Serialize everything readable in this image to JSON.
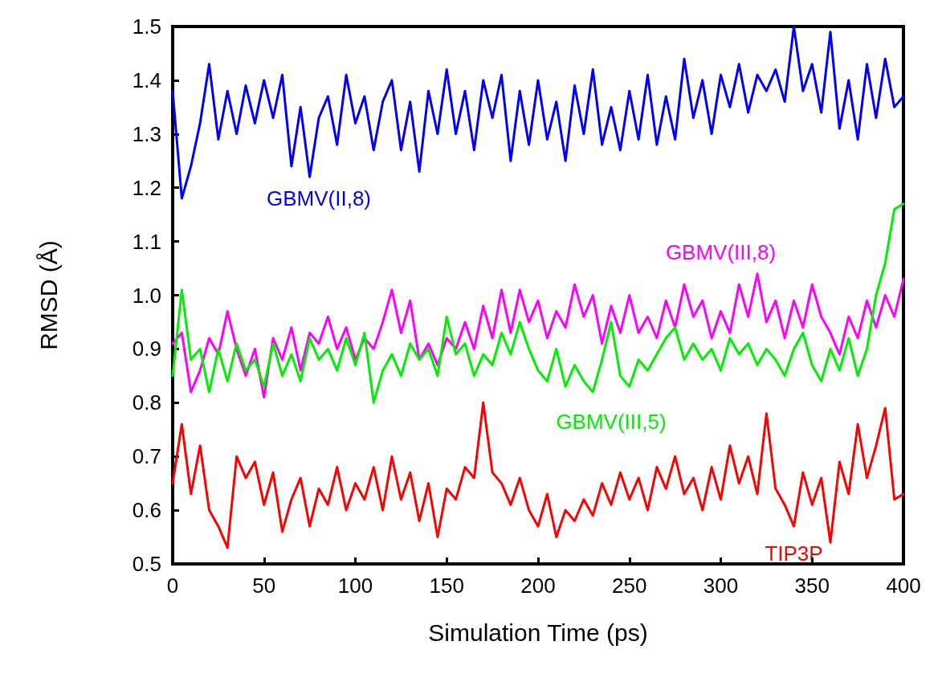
{
  "chart_data": {
    "type": "line",
    "xlabel": "Simulation Time (ps)",
    "ylabel": "RMSD (Å)",
    "x": [
      0,
      5,
      10,
      15,
      20,
      25,
      30,
      35,
      40,
      45,
      50,
      55,
      60,
      65,
      70,
      75,
      80,
      85,
      90,
      95,
      100,
      105,
      110,
      115,
      120,
      125,
      130,
      135,
      140,
      145,
      150,
      155,
      160,
      165,
      170,
      175,
      180,
      185,
      190,
      195,
      200,
      205,
      210,
      215,
      220,
      225,
      230,
      235,
      240,
      245,
      250,
      255,
      260,
      265,
      270,
      275,
      280,
      285,
      290,
      295,
      300,
      305,
      310,
      315,
      320,
      325,
      330,
      335,
      340,
      345,
      350,
      355,
      360,
      365,
      370,
      375,
      380,
      385,
      390,
      395,
      400
    ],
    "xlim": [
      0,
      400
    ],
    "xticks": [
      0,
      50,
      100,
      150,
      200,
      250,
      300,
      350,
      400
    ],
    "ylim": [
      0.5,
      1.5
    ],
    "yticks": [
      {
        "value": 0.5,
        "label": "0.5"
      },
      {
        "value": 0.6,
        "label": "0.6"
      },
      {
        "value": 0.7,
        "label": "0.7"
      },
      {
        "value": 0.8,
        "label": "0.8"
      },
      {
        "value": 0.9,
        "label": "0.9"
      },
      {
        "value": 1,
        "label": "1.0"
      },
      {
        "value": 1.1,
        "label": "1.1"
      },
      {
        "value": 1.2,
        "label": "1.2"
      },
      {
        "value": 1.3,
        "label": "1.3"
      },
      {
        "value": 1.4,
        "label": "1.4"
      },
      {
        "value": 1.5,
        "label": "1.5"
      }
    ],
    "grid": false,
    "legend": false,
    "marker": "none",
    "line_style": "solid",
    "series": [
      {
        "name": "GBMV(II,8)",
        "color": "#0000ff",
        "values": [
          1.38,
          1.18,
          1.24,
          1.32,
          1.43,
          1.29,
          1.38,
          1.3,
          1.39,
          1.32,
          1.4,
          1.33,
          1.41,
          1.24,
          1.35,
          1.22,
          1.33,
          1.37,
          1.28,
          1.41,
          1.32,
          1.37,
          1.27,
          1.36,
          1.4,
          1.27,
          1.36,
          1.23,
          1.38,
          1.3,
          1.42,
          1.3,
          1.38,
          1.27,
          1.4,
          1.33,
          1.41,
          1.25,
          1.38,
          1.28,
          1.4,
          1.29,
          1.36,
          1.25,
          1.39,
          1.3,
          1.42,
          1.28,
          1.35,
          1.27,
          1.38,
          1.29,
          1.41,
          1.28,
          1.37,
          1.29,
          1.44,
          1.33,
          1.4,
          1.3,
          1.41,
          1.35,
          1.43,
          1.34,
          1.41,
          1.38,
          1.42,
          1.36,
          1.5,
          1.38,
          1.43,
          1.34,
          1.49,
          1.31,
          1.4,
          1.29,
          1.43,
          1.33,
          1.44,
          1.35,
          1.37
        ]
      },
      {
        "name": "GBMV(III,8)",
        "color": "#ff00ff",
        "values": [
          0.91,
          0.93,
          0.82,
          0.86,
          0.92,
          0.89,
          0.97,
          0.9,
          0.85,
          0.9,
          0.81,
          0.92,
          0.88,
          0.94,
          0.86,
          0.93,
          0.91,
          0.96,
          0.9,
          0.94,
          0.88,
          0.92,
          0.9,
          0.95,
          1.01,
          0.93,
          0.99,
          0.88,
          0.91,
          0.87,
          0.92,
          0.9,
          0.95,
          0.9,
          0.98,
          0.92,
          1.01,
          0.93,
          1.01,
          0.95,
          0.99,
          0.92,
          0.97,
          0.94,
          1.02,
          0.96,
          1.0,
          0.91,
          0.98,
          0.93,
          1.0,
          0.93,
          0.96,
          0.92,
          0.99,
          0.94,
          1.02,
          0.96,
          0.99,
          0.92,
          0.97,
          0.93,
          1.02,
          0.96,
          1.04,
          0.95,
          0.99,
          0.92,
          0.99,
          0.94,
          1.02,
          0.96,
          0.93,
          0.89,
          0.96,
          0.92,
          0.99,
          0.94,
          1.0,
          0.96,
          1.03
        ]
      },
      {
        "name": "GBMV(III,5)",
        "color": "#00ee00",
        "values": [
          0.85,
          1.01,
          0.88,
          0.9,
          0.82,
          0.9,
          0.84,
          0.91,
          0.86,
          0.88,
          0.83,
          0.91,
          0.85,
          0.89,
          0.84,
          0.92,
          0.88,
          0.9,
          0.86,
          0.92,
          0.87,
          0.93,
          0.8,
          0.86,
          0.89,
          0.85,
          0.91,
          0.88,
          0.9,
          0.85,
          0.96,
          0.89,
          0.91,
          0.85,
          0.89,
          0.87,
          0.93,
          0.89,
          0.95,
          0.9,
          0.86,
          0.84,
          0.9,
          0.83,
          0.87,
          0.84,
          0.82,
          0.88,
          0.95,
          0.85,
          0.83,
          0.88,
          0.86,
          0.89,
          0.92,
          0.94,
          0.88,
          0.91,
          0.88,
          0.9,
          0.86,
          0.92,
          0.89,
          0.91,
          0.87,
          0.9,
          0.88,
          0.85,
          0.9,
          0.93,
          0.87,
          0.84,
          0.9,
          0.86,
          0.92,
          0.85,
          0.9,
          1.0,
          1.06,
          1.16,
          1.17
        ]
      },
      {
        "name": "TIP3P",
        "color": "#ff0000",
        "values": [
          0.65,
          0.76,
          0.63,
          0.72,
          0.6,
          0.57,
          0.53,
          0.7,
          0.66,
          0.69,
          0.61,
          0.67,
          0.56,
          0.62,
          0.66,
          0.57,
          0.64,
          0.61,
          0.68,
          0.6,
          0.65,
          0.62,
          0.68,
          0.6,
          0.7,
          0.62,
          0.67,
          0.58,
          0.65,
          0.55,
          0.64,
          0.62,
          0.68,
          0.66,
          0.8,
          0.67,
          0.65,
          0.61,
          0.66,
          0.6,
          0.57,
          0.63,
          0.55,
          0.6,
          0.58,
          0.62,
          0.59,
          0.65,
          0.61,
          0.67,
          0.62,
          0.66,
          0.6,
          0.68,
          0.64,
          0.7,
          0.63,
          0.66,
          0.6,
          0.68,
          0.62,
          0.72,
          0.65,
          0.7,
          0.63,
          0.78,
          0.64,
          0.61,
          0.57,
          0.67,
          0.61,
          0.66,
          0.54,
          0.69,
          0.63,
          0.76,
          0.66,
          0.72,
          0.79,
          0.62,
          0.63
        ]
      }
    ]
  }
}
